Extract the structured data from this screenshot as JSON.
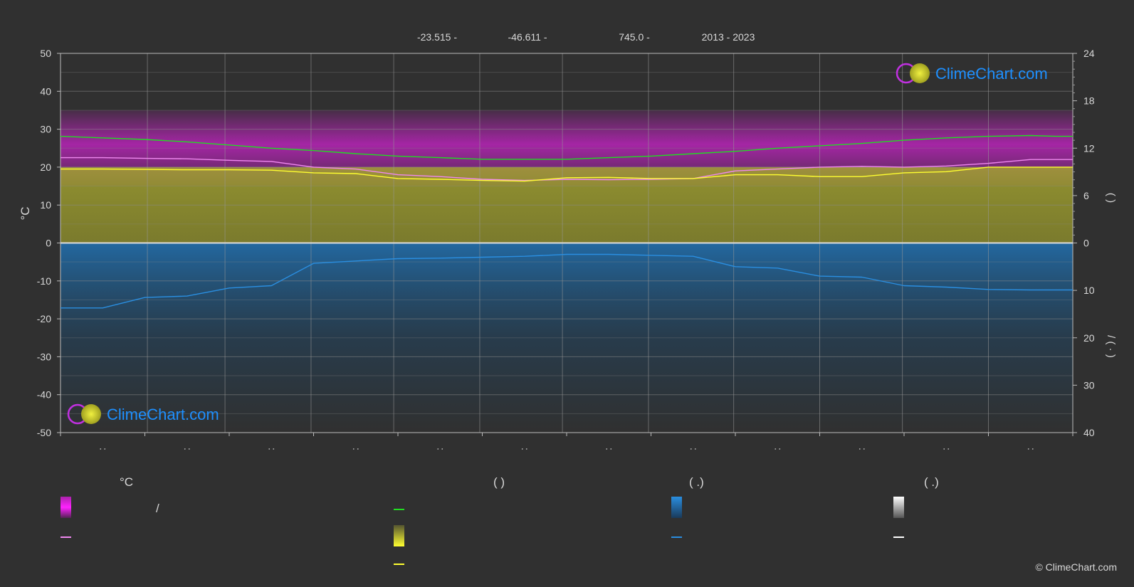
{
  "header": {
    "latitude": "-23.515 -",
    "longitude": "-46.611 -",
    "elevation": "745.0 -",
    "years": "2013 - 2023"
  },
  "logos": {
    "brand": "ClimeChart.com"
  },
  "copyright": "© ClimeChart.com",
  "legend": {
    "col1_title": "°C",
    "col1_item1_sep": "/",
    "col2_title": "(          )",
    "col3_title": "(   .)",
    "col4_title": "(   .)"
  },
  "axes": {
    "left_label": "°C",
    "right_upper_label": "(     )",
    "right_lower_label": "/     (  ·  )"
  },
  "colors": {
    "background": "#303030",
    "daylight": "#22dd22",
    "max_temp": "#f088f0",
    "mean_temp": "#ffff30",
    "precip": "#2a8ee0",
    "temp_band": "#cc22cc",
    "sunshine_band": "#a8a830",
    "precip_band": "#1a5a8a"
  },
  "chart_data": {
    "type": "line",
    "left_axis": {
      "ylim": [
        -50,
        50
      ],
      "ticks": [
        50,
        40,
        30,
        20,
        10,
        0,
        -10,
        -20,
        -30,
        -40,
        -50
      ]
    },
    "right_upper_axis": {
      "ylim": [
        0,
        24
      ],
      "ticks": [
        24,
        18,
        12,
        6,
        0
      ]
    },
    "right_lower_axis": {
      "ylim": [
        0,
        40
      ],
      "ticks": [
        0,
        10,
        20,
        30,
        40
      ],
      "inverted": true
    },
    "months": 12,
    "x": [
      0,
      0.5,
      1.0,
      1.5,
      2.0,
      2.5,
      3.0,
      3.5,
      4.0,
      4.5,
      5.0,
      5.5,
      6.0,
      6.5,
      7.0,
      7.5,
      8.0,
      8.5,
      9.0,
      9.5,
      10.0,
      10.5,
      11.0,
      11.5,
      11.8
    ],
    "series": [
      {
        "key": "daylight",
        "axis": "right_upper",
        "values": [
          13.5,
          13.3,
          13.1,
          12.8,
          12.4,
          12.0,
          11.7,
          11.3,
          11.0,
          10.8,
          10.6,
          10.6,
          10.6,
          10.8,
          11.0,
          11.3,
          11.6,
          12.0,
          12.3,
          12.6,
          13.0,
          13.3,
          13.5,
          13.6,
          13.5
        ]
      },
      {
        "key": "max_temp",
        "axis": "left",
        "values": [
          22.5,
          22.5,
          22.3,
          22.2,
          21.8,
          21.5,
          20.0,
          19.5,
          18.0,
          17.5,
          16.8,
          16.5,
          16.8,
          16.7,
          16.8,
          17.0,
          19.0,
          19.5,
          20.0,
          20.2,
          20.0,
          20.3,
          21.0,
          22.0,
          22.0
        ]
      },
      {
        "key": "mean_temp",
        "axis": "left",
        "values": [
          19.5,
          19.5,
          19.4,
          19.3,
          19.3,
          19.2,
          18.5,
          18.3,
          17.0,
          16.8,
          16.5,
          16.3,
          17.2,
          17.3,
          17.0,
          17.0,
          18.0,
          18.0,
          17.5,
          17.5,
          18.5,
          18.8,
          20.0,
          20.0,
          20.0
        ]
      },
      {
        "key": "precip",
        "axis": "right_lower",
        "values": [
          13.7,
          13.7,
          11.5,
          11.2,
          9.5,
          9.0,
          4.3,
          3.8,
          3.3,
          3.2,
          3.0,
          2.8,
          2.4,
          2.4,
          2.6,
          2.8,
          5.0,
          5.3,
          7.0,
          7.2,
          9.0,
          9.3,
          9.8,
          9.9,
          9.9
        ]
      }
    ]
  }
}
